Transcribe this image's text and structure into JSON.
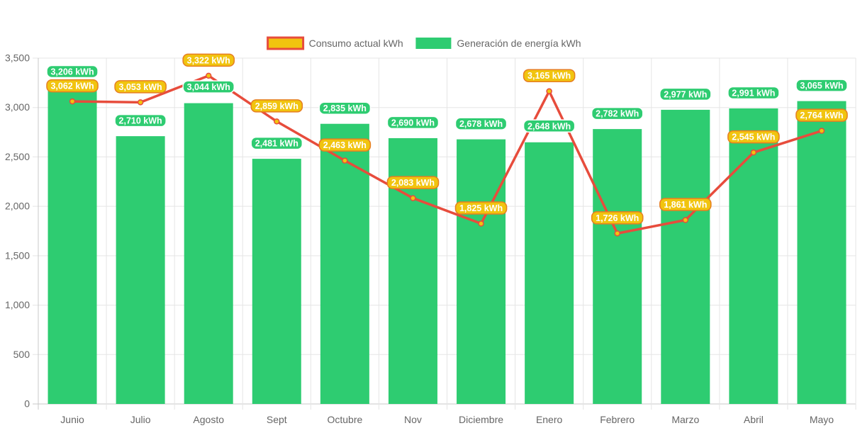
{
  "chart_data": {
    "type": "bar",
    "title": "",
    "xlabel": "",
    "ylabel": "",
    "ylim": [
      0,
      3500
    ],
    "ytick_step": 500,
    "grid": true,
    "legend_position": "top-center",
    "unit_suffix": " kWh",
    "categories": [
      "Junio",
      "Julio",
      "Agosto",
      "Sept",
      "Octubre",
      "Nov",
      "Diciembre",
      "Enero",
      "Febrero",
      "Marzo",
      "Abril",
      "Mayo"
    ],
    "series": [
      {
        "name": "Consumo actual kWh",
        "kind": "line",
        "line_color": "#e74c3c",
        "point_color": "#f1c40f",
        "label_bg": "#f1c40f",
        "label_border": "#e67e22",
        "values": [
          3062,
          3053,
          3322,
          2859,
          2463,
          2083,
          1825,
          3165,
          1726,
          1861,
          2545,
          2764
        ]
      },
      {
        "name": "Generación de energía kWh",
        "kind": "bar",
        "bar_color": "#2ecc71",
        "label_bg": "#2ecc71",
        "values": [
          3206,
          2710,
          3044,
          2481,
          2835,
          2690,
          2678,
          2648,
          2782,
          2977,
          2991,
          3065
        ]
      }
    ]
  }
}
